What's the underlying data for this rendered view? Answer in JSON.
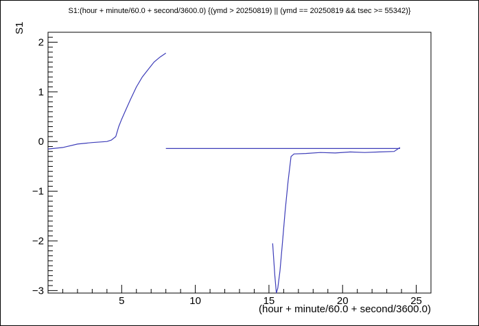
{
  "chart_data": {
    "type": "line",
    "title": "S1:(hour + minute/60.0 + second/3600.0) {(ymd > 20250819) || (ymd == 20250819 && tsec >= 55342)}",
    "xlabel": "(hour + minute/60.0 + second/3600.0)",
    "ylabel": "S1",
    "xlim": [
      0,
      26
    ],
    "ylim": [
      -3.05,
      2.2
    ],
    "x_ticks": [
      5,
      10,
      15,
      20,
      25
    ],
    "y_ticks": [
      -3,
      -2,
      -1,
      0,
      1,
      2
    ],
    "x_tick_labels": [
      "5",
      "10",
      "15",
      "20",
      "25"
    ],
    "y_tick_labels": [
      "−3",
      "−2",
      "−1",
      "0",
      "1",
      "2"
    ],
    "grid": false,
    "legend": "none",
    "color": "#3b3bb8",
    "series": [
      {
        "x": [
          0.0,
          1.0,
          2.0,
          3.0,
          4.0,
          4.3,
          4.6,
          4.8,
          5.0,
          5.3,
          5.6,
          6.0,
          6.4,
          6.8,
          7.2,
          7.6,
          8.0
        ],
        "y": [
          -0.15,
          -0.12,
          -0.05,
          -0.02,
          0.0,
          0.03,
          0.1,
          0.3,
          0.45,
          0.65,
          0.85,
          1.1,
          1.3,
          1.45,
          1.6,
          1.7,
          1.78
        ]
      },
      {
        "x": [
          8.0,
          23.9
        ],
        "y": [
          -0.14,
          -0.14
        ]
      },
      {
        "x": [
          15.25,
          15.4,
          15.5,
          15.6,
          15.75,
          15.9,
          16.1,
          16.3,
          16.5,
          16.7,
          17.5,
          18.5,
          19.5,
          20.5,
          21.5,
          22.5,
          23.5,
          23.9
        ],
        "y": [
          -2.05,
          -2.7,
          -3.05,
          -2.95,
          -2.6,
          -2.1,
          -1.4,
          -0.8,
          -0.3,
          -0.25,
          -0.24,
          -0.22,
          -0.23,
          -0.21,
          -0.22,
          -0.21,
          -0.2,
          -0.12
        ]
      }
    ]
  }
}
